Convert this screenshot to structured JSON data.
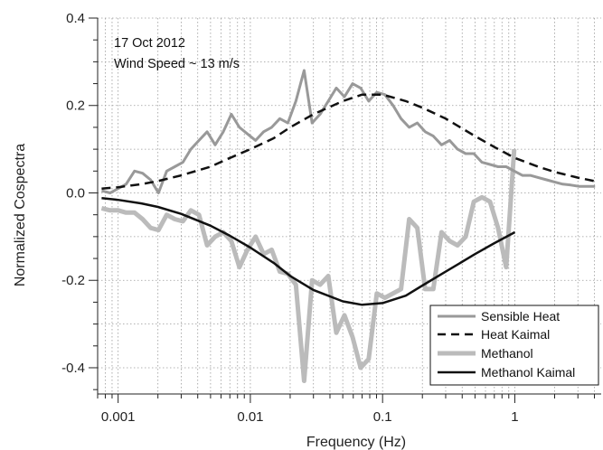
{
  "chart_data": {
    "type": "line",
    "title": "",
    "xlabel": "Frequency (Hz)",
    "ylabel": "Normalized Cospectra",
    "xscale": "log",
    "xlim": [
      0.0007,
      4.5
    ],
    "ylim": [
      -0.46,
      0.4
    ],
    "x_ticks": [
      {
        "value": 0.001,
        "label": "0.001"
      },
      {
        "value": 0.01,
        "label": "0.01"
      },
      {
        "value": 0.1,
        "label": "0.1"
      },
      {
        "value": 1,
        "label": "1"
      }
    ],
    "y_ticks": [
      {
        "value": 0.4,
        "label": "0.4"
      },
      {
        "value": 0.2,
        "label": "0.2"
      },
      {
        "value": 0.0,
        "label": "0.0"
      },
      {
        "value": -0.2,
        "label": "-0.2"
      },
      {
        "value": -0.4,
        "label": "-0.4"
      }
    ],
    "grid": true,
    "annotations": [
      "17 Oct 2012",
      "Wind Speed ~ 13 m/s"
    ],
    "legend_position": "bottom-right",
    "series": [
      {
        "name": "Sensible Heat",
        "color": "#999999",
        "style": "solid",
        "width": 3,
        "x": [
          0.00075,
          0.00087,
          0.001,
          0.00115,
          0.00133,
          0.00153,
          0.00176,
          0.00202,
          0.00233,
          0.00268,
          0.00309,
          0.00355,
          0.00409,
          0.00471,
          0.00542,
          0.00624,
          0.00718,
          0.00826,
          0.00951,
          0.01095,
          0.0126,
          0.0145,
          0.0167,
          0.0192,
          0.0221,
          0.0255,
          0.0293,
          0.0337,
          0.0388,
          0.0447,
          0.0515,
          0.0593,
          0.0682,
          0.0785,
          0.0904,
          0.104,
          0.12,
          0.138,
          0.159,
          0.183,
          0.21,
          0.242,
          0.279,
          0.321,
          0.369,
          0.425,
          0.49,
          0.564,
          0.649,
          0.747,
          0.86,
          0.99,
          1.14,
          1.31,
          1.51,
          1.74,
          2.0,
          2.3,
          2.65,
          3.05,
          3.51,
          4.04
        ],
        "y": [
          0.005,
          0.0,
          0.01,
          0.02,
          0.05,
          0.045,
          0.03,
          0.0,
          0.05,
          0.06,
          0.07,
          0.1,
          0.12,
          0.14,
          0.11,
          0.14,
          0.18,
          0.15,
          0.135,
          0.12,
          0.14,
          0.15,
          0.17,
          0.16,
          0.21,
          0.28,
          0.16,
          0.18,
          0.21,
          0.24,
          0.22,
          0.25,
          0.24,
          0.21,
          0.23,
          0.225,
          0.2,
          0.17,
          0.15,
          0.16,
          0.14,
          0.13,
          0.11,
          0.12,
          0.1,
          0.09,
          0.09,
          0.07,
          0.065,
          0.06,
          0.06,
          0.05,
          0.04,
          0.04,
          0.035,
          0.03,
          0.025,
          0.02,
          0.018,
          0.015,
          0.015,
          0.015
        ]
      },
      {
        "name": "Heat Kaimal",
        "color": "#111111",
        "style": "dashed",
        "width": 2.5,
        "x": [
          0.00075,
          0.001,
          0.0015,
          0.002,
          0.003,
          0.005,
          0.007,
          0.01,
          0.015,
          0.02,
          0.03,
          0.05,
          0.07,
          0.1,
          0.15,
          0.2,
          0.3,
          0.5,
          0.7,
          1,
          1.5,
          2,
          3,
          4
        ],
        "y": [
          0.01,
          0.013,
          0.02,
          0.027,
          0.04,
          0.06,
          0.08,
          0.1,
          0.125,
          0.15,
          0.18,
          0.21,
          0.225,
          0.225,
          0.21,
          0.195,
          0.17,
          0.13,
          0.105,
          0.08,
          0.06,
          0.048,
          0.035,
          0.027
        ]
      },
      {
        "name": "Methanol",
        "color": "#bbbbbb",
        "style": "solid",
        "width": 5,
        "x": [
          0.00075,
          0.00087,
          0.001,
          0.00115,
          0.00133,
          0.00153,
          0.00176,
          0.00202,
          0.00233,
          0.00268,
          0.00309,
          0.00355,
          0.00409,
          0.00471,
          0.00542,
          0.00624,
          0.00718,
          0.00826,
          0.00951,
          0.01095,
          0.0126,
          0.0145,
          0.0167,
          0.0192,
          0.0221,
          0.0255,
          0.0293,
          0.0337,
          0.0388,
          0.0447,
          0.0515,
          0.0593,
          0.0682,
          0.0785,
          0.0904,
          0.104,
          0.12,
          0.138,
          0.159,
          0.183,
          0.21,
          0.242,
          0.279,
          0.321,
          0.369,
          0.425,
          0.49,
          0.564,
          0.649,
          0.747,
          0.86,
          0.99
        ],
        "y": [
          -0.035,
          -0.04,
          -0.04,
          -0.045,
          -0.045,
          -0.06,
          -0.08,
          -0.085,
          -0.05,
          -0.06,
          -0.065,
          -0.04,
          -0.05,
          -0.12,
          -0.1,
          -0.09,
          -0.11,
          -0.17,
          -0.13,
          -0.1,
          -0.14,
          -0.13,
          -0.18,
          -0.185,
          -0.21,
          -0.43,
          -0.2,
          -0.21,
          -0.19,
          -0.32,
          -0.28,
          -0.33,
          -0.4,
          -0.38,
          -0.23,
          -0.24,
          -0.23,
          -0.22,
          -0.06,
          -0.08,
          -0.22,
          -0.22,
          -0.09,
          -0.11,
          -0.12,
          -0.1,
          -0.02,
          -0.01,
          -0.02,
          -0.08,
          -0.17,
          0.1
        ]
      },
      {
        "name": "Methanol Kaimal",
        "color": "#111111",
        "style": "solid",
        "width": 2.5,
        "x": [
          0.00075,
          0.001,
          0.0015,
          0.002,
          0.003,
          0.005,
          0.007,
          0.01,
          0.015,
          0.02,
          0.03,
          0.05,
          0.07,
          0.1,
          0.15,
          0.2,
          0.3,
          0.5,
          0.7,
          1
        ],
        "y": [
          -0.012,
          -0.016,
          -0.024,
          -0.032,
          -0.048,
          -0.075,
          -0.098,
          -0.125,
          -0.16,
          -0.19,
          -0.222,
          -0.248,
          -0.256,
          -0.252,
          -0.235,
          -0.212,
          -0.18,
          -0.14,
          -0.115,
          -0.09
        ]
      }
    ]
  }
}
